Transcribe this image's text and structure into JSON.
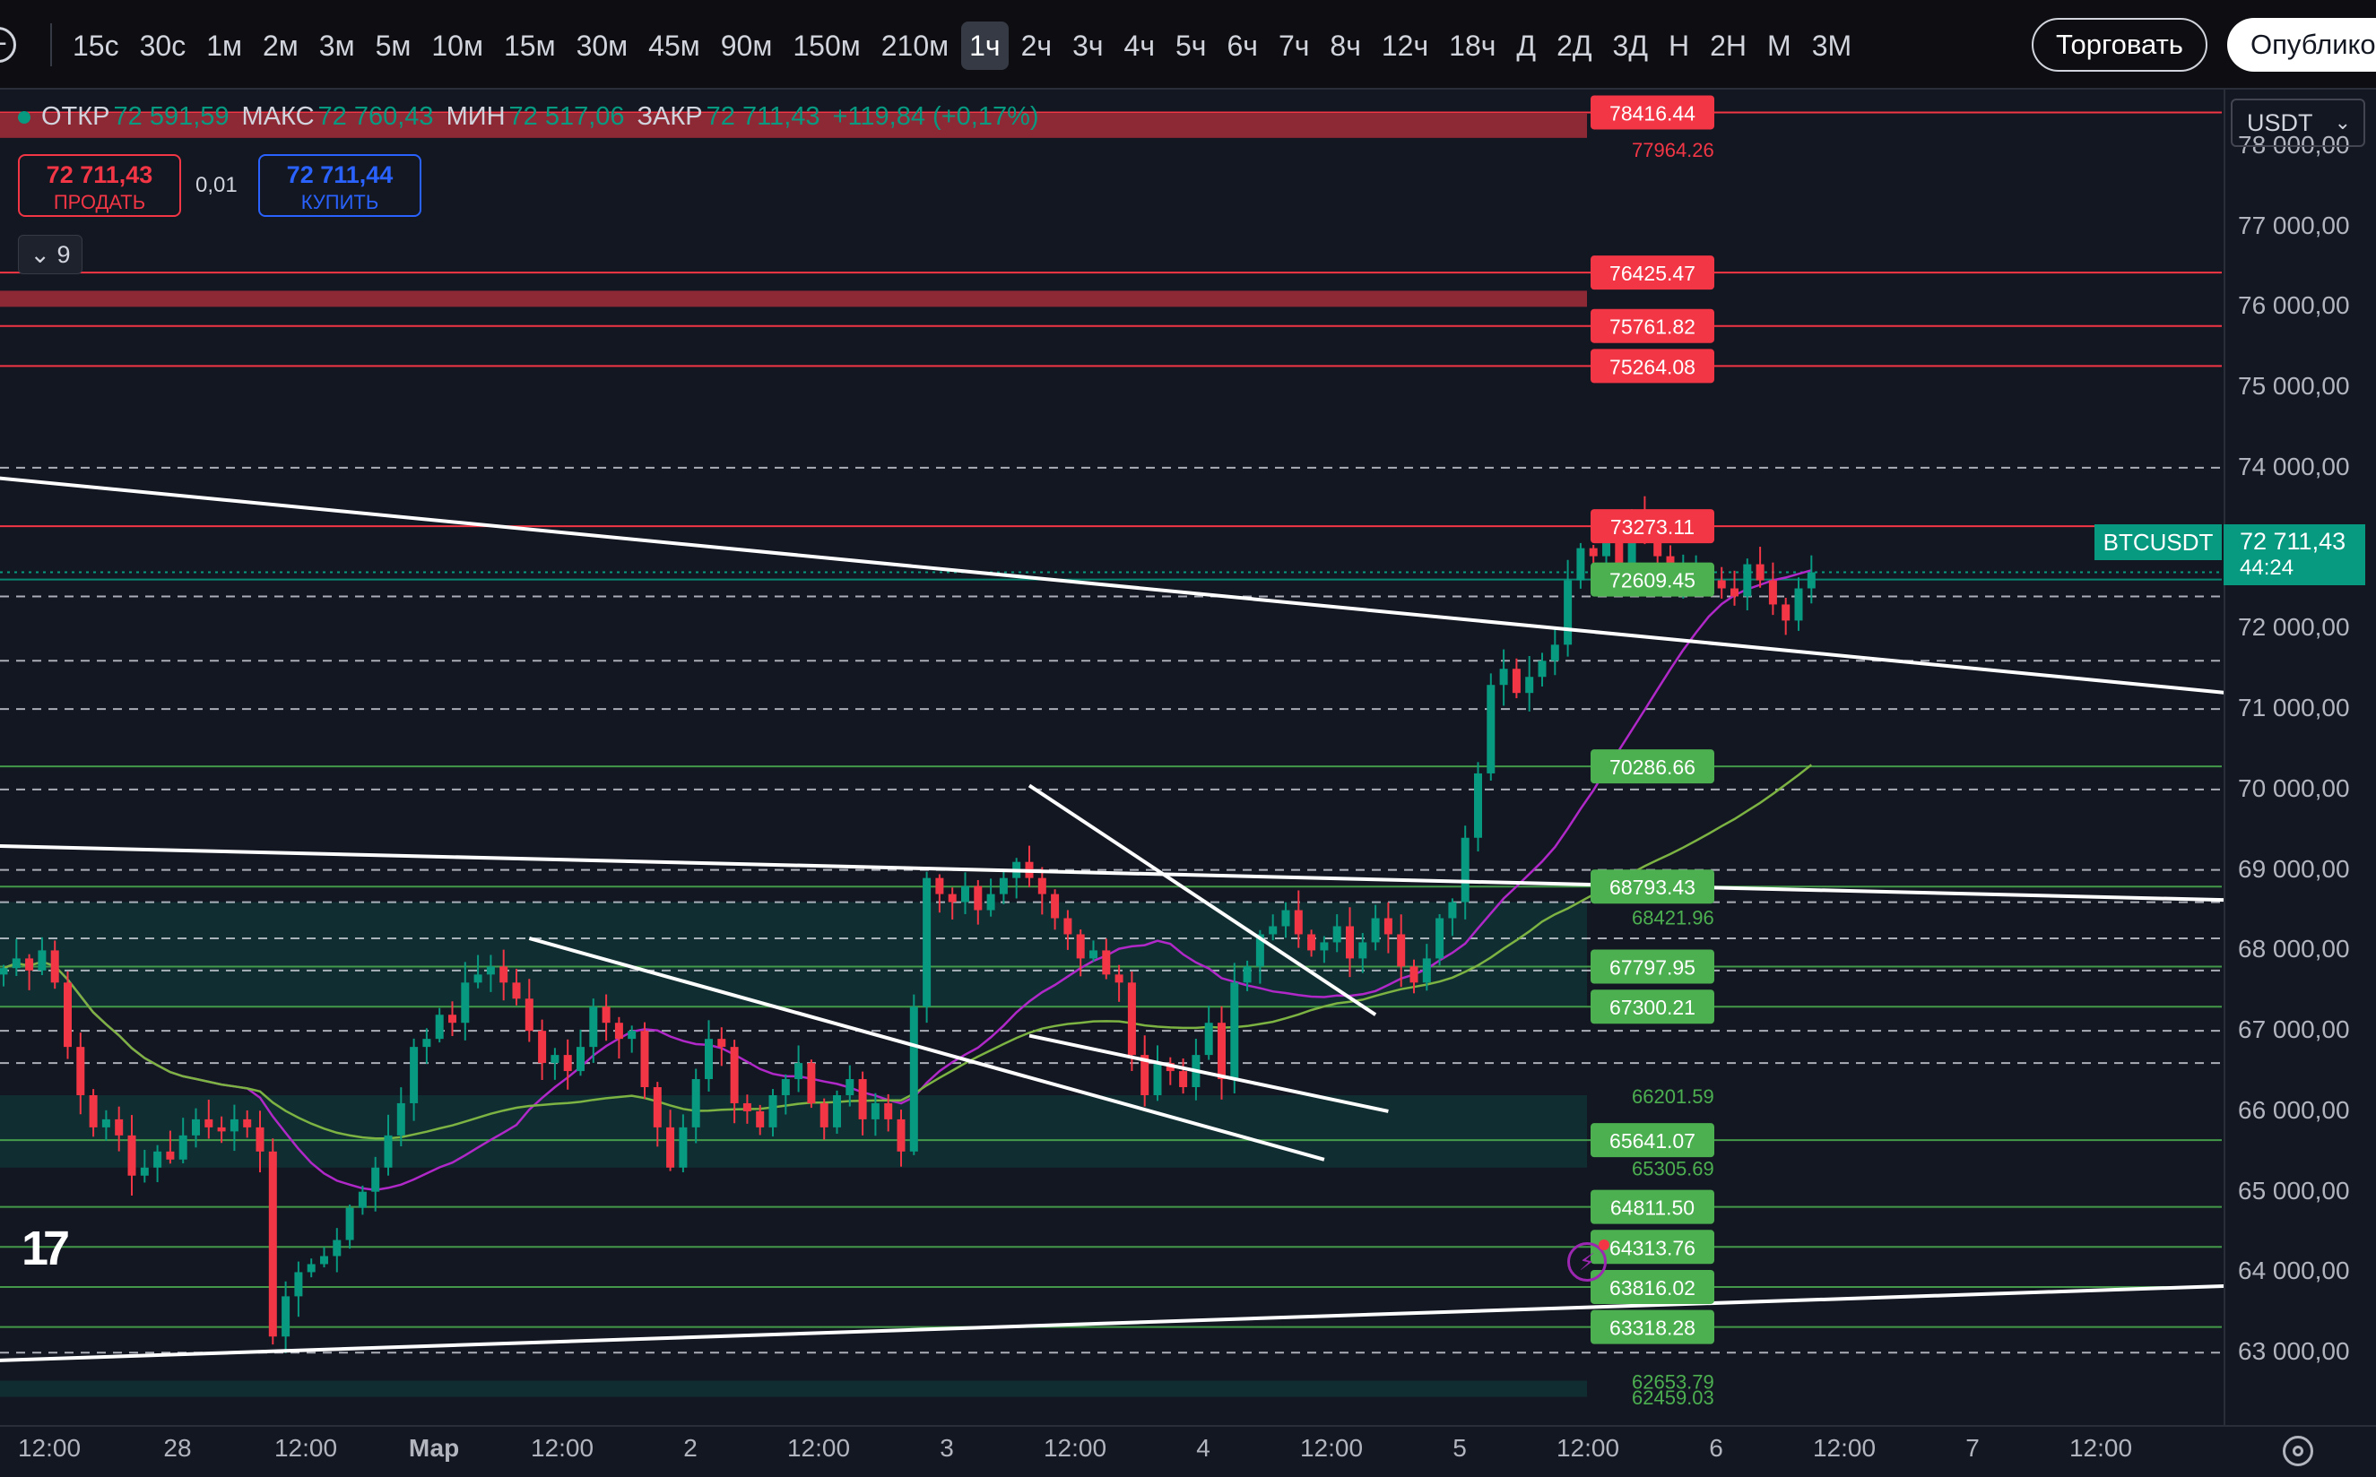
{
  "toolbar": {
    "timeframes": [
      "15с",
      "30с",
      "1м",
      "2м",
      "3м",
      "5м",
      "10м",
      "15м",
      "30м",
      "45м",
      "90м",
      "150м",
      "210м",
      "1ч",
      "2ч",
      "3ч",
      "4ч",
      "5ч",
      "6ч",
      "7ч",
      "8ч",
      "12ч",
      "18ч",
      "Д",
      "2Д",
      "3Д",
      "Н",
      "2Н",
      "М",
      "3М"
    ],
    "active_timeframe": "1ч",
    "trade_label": "Торговать",
    "publish_label": "Опубликовать"
  },
  "legend": {
    "open_label": "ОТКР",
    "open": "72 591,59",
    "high_label": "МАКС",
    "high": "72 760,43",
    "low_label": "МИН",
    "low": "72 517,06",
    "close_label": "ЗАКР",
    "close": "72 711,43",
    "change": "+119,84 (+0,17%)"
  },
  "order": {
    "sell_price": "72 711,43",
    "sell_label": "ПРОДАТЬ",
    "spread": "0,01",
    "buy_price": "72 711,44",
    "buy_label": "КУПИТЬ"
  },
  "indicators_collapse": {
    "count": "9"
  },
  "currency": "USDT",
  "symbol": "BTCUSDT",
  "last_price": "72 711,43",
  "countdown": "44:24",
  "colors": {
    "up": "#089981",
    "down": "#f23645",
    "background": "#131722",
    "ma_magenta": "#b028c8",
    "ma_green": "#7cb342"
  },
  "price_axis": [
    "78 000,00",
    "77 000,00",
    "76 000,00",
    "75 000,00",
    "74 000,00",
    "73 000,00",
    "72 000,00",
    "71 000,00",
    "70 000,00",
    "69 000,00",
    "68 000,00",
    "67 000,00",
    "66 000,00",
    "65 000,00",
    "64 000,00",
    "63 000,00"
  ],
  "time_axis": [
    {
      "label": "12:00"
    },
    {
      "label": "28"
    },
    {
      "label": "12:00"
    },
    {
      "label": "Мар"
    },
    {
      "label": "12:00"
    },
    {
      "label": "2"
    },
    {
      "label": "12:00"
    },
    {
      "label": "3"
    },
    {
      "label": "12:00"
    },
    {
      "label": "4"
    },
    {
      "label": "12:00"
    },
    {
      "label": "5"
    },
    {
      "label": "12:00"
    },
    {
      "label": "6"
    },
    {
      "label": "12:00"
    },
    {
      "label": "7"
    },
    {
      "label": "12:00"
    }
  ],
  "chart_data": {
    "type": "candlestick",
    "y_range": [
      62100,
      78700
    ],
    "resistance_levels": [
      78416.44,
      76425.47,
      75761.82,
      75264.08,
      73273.11
    ],
    "support_levels": [
      72609.45,
      70286.66,
      68793.43,
      67797.95,
      67300.21,
      65641.07,
      64811.5,
      64313.76,
      63816.02,
      63318.28
    ],
    "plain_labels": [
      77964.26,
      68421.96,
      66201.59,
      65305.69,
      62653.79,
      62459.03
    ],
    "dashed_levels": [
      74000,
      72400,
      71600,
      71000,
      70000,
      69000,
      68600,
      68150,
      67750,
      67000,
      66600,
      63000
    ],
    "zones": [
      {
        "from": 78100,
        "to": 78400,
        "color": "red"
      },
      {
        "from": 76000,
        "to": 76200,
        "color": "red"
      },
      {
        "from": 67300,
        "to": 68600,
        "color": "green"
      },
      {
        "from": 65300,
        "to": 66200,
        "color": "green"
      },
      {
        "from": 62450,
        "to": 62650,
        "color": "green"
      }
    ],
    "candles_close": [
      67780,
      67900,
      67750,
      68000,
      67600,
      66800,
      66200,
      65800,
      65900,
      65700,
      65200,
      65300,
      65500,
      65400,
      65700,
      65900,
      65800,
      65750,
      65900,
      65800,
      65500,
      63200,
      63700,
      64000,
      64100,
      64200,
      64400,
      64800,
      65000,
      65300,
      65700,
      66100,
      66800,
      66900,
      67200,
      67100,
      67600,
      67700,
      67800,
      67600,
      67400,
      67000,
      66600,
      66700,
      66500,
      66800,
      67300,
      67100,
      66900,
      67000,
      66300,
      65800,
      65300,
      65800,
      66400,
      66900,
      66800,
      66100,
      66000,
      65800,
      66200,
      66400,
      66600,
      66100,
      65800,
      66200,
      66400,
      65900,
      66100,
      65900,
      65500,
      67300,
      68900,
      68700,
      68600,
      68800,
      68500,
      68700,
      68900,
      69100,
      68900,
      68700,
      68400,
      68200,
      67900,
      68000,
      67700,
      67600,
      66700,
      66200,
      66600,
      66500,
      66300,
      66700,
      67100,
      66400,
      67600,
      67800,
      68200,
      68300,
      68500,
      68200,
      68000,
      68100,
      68300,
      67900,
      68100,
      68400,
      68200,
      67800,
      67600,
      67900,
      68400,
      68600,
      69400,
      70200,
      71300,
      71500,
      71200,
      71400,
      71600,
      71800,
      72600,
      73000,
      72900,
      73200,
      72800,
      73400,
      73200,
      72900,
      72600,
      72700,
      72700,
      72600,
      72500,
      72400,
      72800,
      72600,
      72300,
      72100,
      72500,
      72700
    ],
    "trendlines": [
      {
        "points": [
          [
            -1,
            73880
          ],
          [
            193,
            70900
          ]
        ]
      },
      {
        "points": [
          [
            -1,
            69300
          ],
          [
            193,
            68550
          ]
        ]
      },
      {
        "points": [
          [
            -1,
            62900
          ],
          [
            215,
            64050
          ]
        ]
      },
      {
        "points": [
          [
            41,
            68150
          ],
          [
            103,
            65400
          ]
        ]
      },
      {
        "points": [
          [
            80,
            70050
          ],
          [
            107,
            67200
          ]
        ]
      },
      {
        "points": [
          [
            80,
            66940
          ],
          [
            108,
            66000
          ]
        ]
      }
    ]
  }
}
